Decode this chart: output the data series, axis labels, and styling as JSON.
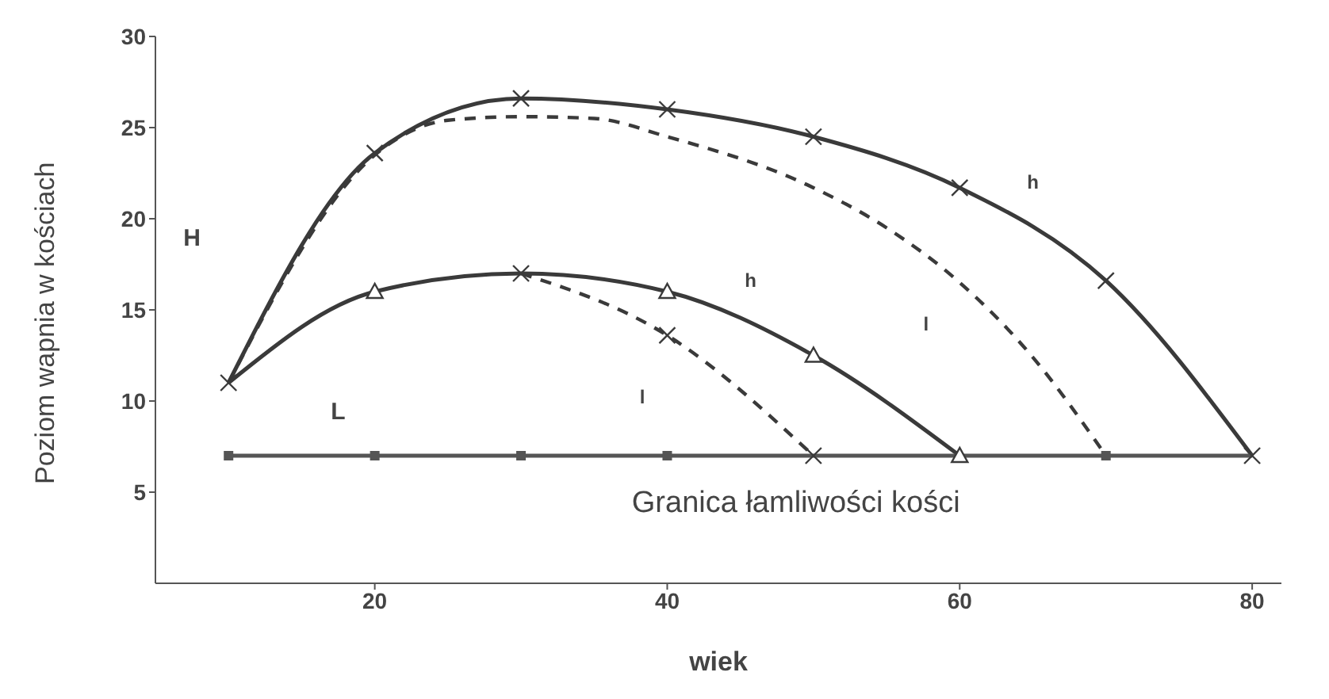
{
  "chart_data": {
    "type": "line",
    "xlabel": "wiek",
    "ylabel": "Poziom wapnia w kościach",
    "xlim": [
      5,
      82
    ],
    "xticks": [
      20,
      40,
      60,
      80
    ],
    "ylim": [
      0,
      30
    ],
    "yticks": [
      5,
      10,
      15,
      20,
      25,
      30
    ],
    "grid": false,
    "legend": false,
    "line_style": "solid",
    "series": [
      {
        "color": "#3a3a3a",
        "marker": "cross",
        "x": [
          10,
          20,
          30,
          40,
          50,
          60,
          70,
          80
        ],
        "values": [
          11,
          23.6,
          26.6,
          26,
          24.5,
          21.7,
          16.6,
          7
        ]
      },
      {
        "color": "#3a3a3a",
        "marker": "none",
        "line_style": "dashed",
        "x": [
          10,
          20,
          25,
          30,
          35,
          40,
          50,
          55,
          60,
          65,
          70
        ],
        "values": [
          11,
          23.5,
          25.4,
          25.6,
          25.5,
          24.5,
          21.7,
          19.5,
          16.5,
          12.4,
          7
        ]
      },
      {
        "color": "#3a3a3a",
        "marker": "cross",
        "line_style": "dashed",
        "x": [
          30,
          40,
          50
        ],
        "values": [
          17,
          13.6,
          7
        ]
      },
      {
        "color": "#3a3a3a",
        "marker": "triangle",
        "x": [
          10,
          20,
          30,
          40,
          50,
          60
        ],
        "values": [
          11,
          16,
          17,
          16,
          12.5,
          7
        ]
      },
      {
        "color": "#555555",
        "marker": "square",
        "x": [
          10,
          20,
          30,
          40,
          50,
          60,
          70,
          80
        ],
        "values": [
          7,
          7,
          7,
          7,
          7,
          7,
          7,
          7
        ]
      }
    ],
    "annotations": [
      "H",
      "L",
      "l",
      "h",
      "l",
      "h",
      "Granica łamliwości  kości"
    ]
  }
}
